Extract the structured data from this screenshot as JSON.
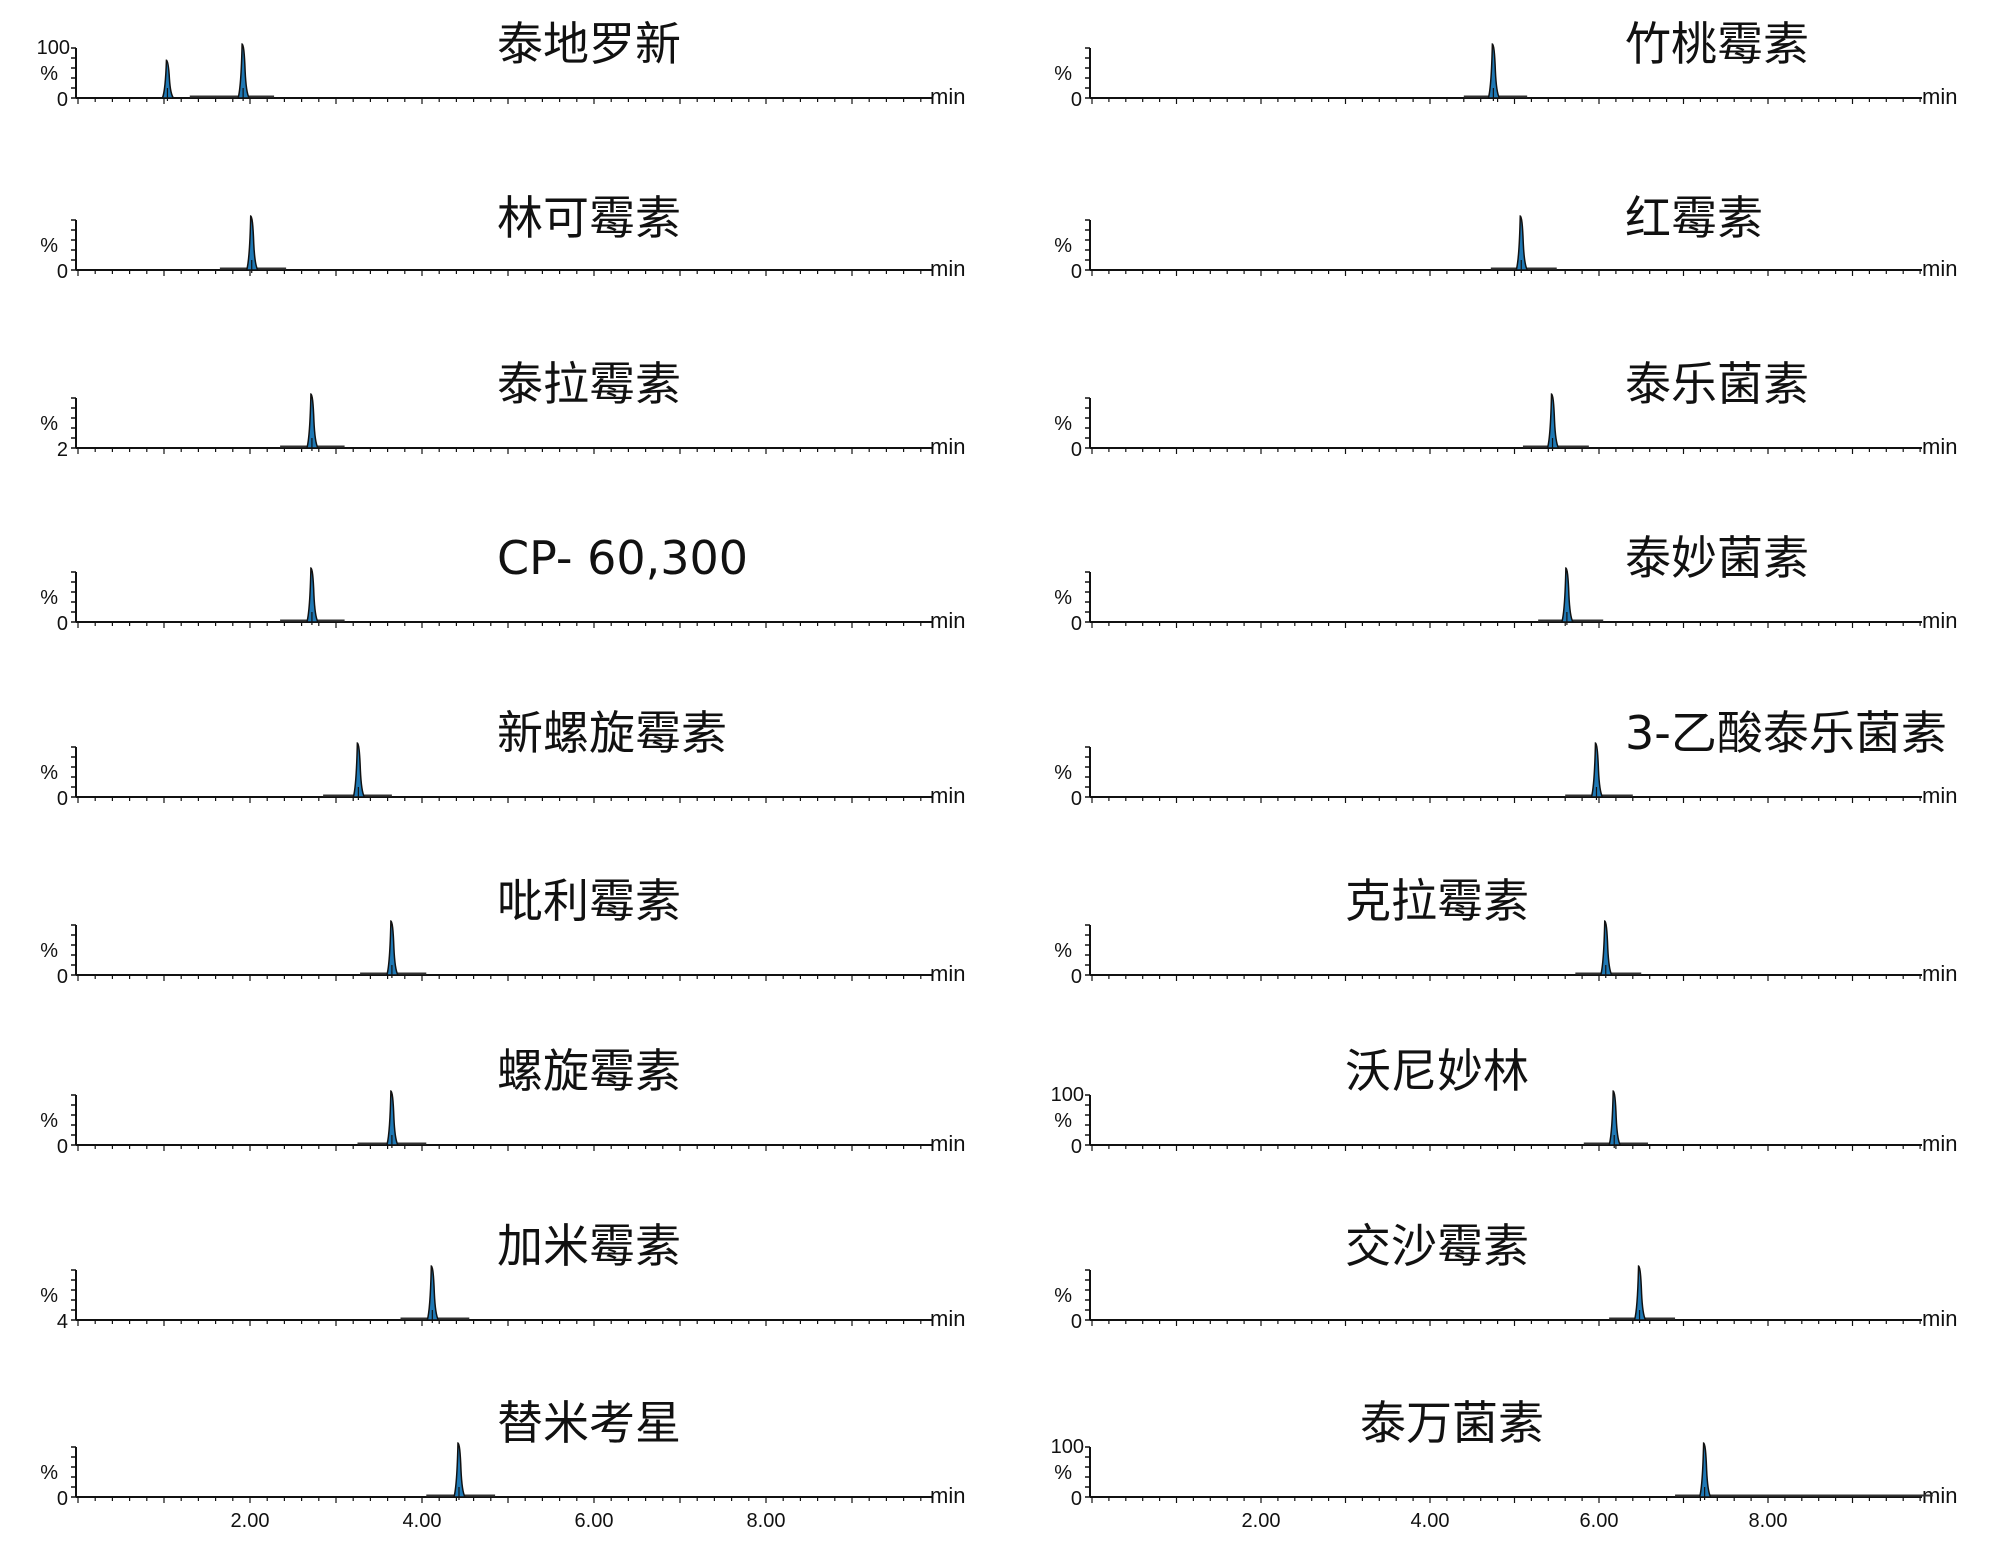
{
  "chart_data": [
    {
      "type": "line",
      "title": "泰地罗新",
      "y_top_label": "100",
      "y_unit": "%",
      "y_bottom_label": "0",
      "x_unit": "min",
      "xlim": [
        0,
        10
      ],
      "peaks": [
        {
          "rt": 1.04,
          "height": 0.7
        },
        {
          "rt": 1.92,
          "height": 1.0
        }
      ],
      "baseline_range": [
        1.3,
        2.28
      ]
    },
    {
      "type": "line",
      "title": "林可霉素",
      "y_top_label": "",
      "y_unit": "%",
      "y_bottom_label": "0",
      "x_unit": "min",
      "xlim": [
        0,
        10
      ],
      "peaks": [
        {
          "rt": 2.02,
          "height": 1.0
        }
      ],
      "baseline_range": [
        1.65,
        2.42
      ]
    },
    {
      "type": "line",
      "title": "泰拉霉素",
      "y_top_label": "",
      "y_unit": "%",
      "y_bottom_label": "2",
      "x_unit": "min",
      "xlim": [
        0,
        10
      ],
      "peaks": [
        {
          "rt": 2.72,
          "height": 1.0
        }
      ],
      "baseline_range": [
        2.35,
        3.1
      ]
    },
    {
      "type": "line",
      "title": "CP- 60,300",
      "y_top_label": "",
      "y_unit": "%",
      "y_bottom_label": "0",
      "x_unit": "min",
      "xlim": [
        0,
        10
      ],
      "peaks": [
        {
          "rt": 2.72,
          "height": 1.0
        }
      ],
      "baseline_range": [
        2.35,
        3.1
      ]
    },
    {
      "type": "line",
      "title": "新螺旋霉素",
      "y_top_label": "",
      "y_unit": "%",
      "y_bottom_label": "0",
      "x_unit": "min",
      "xlim": [
        0,
        10
      ],
      "peaks": [
        {
          "rt": 3.26,
          "height": 1.0
        }
      ],
      "baseline_range": [
        2.85,
        3.65
      ]
    },
    {
      "type": "line",
      "title": "吡利霉素",
      "y_top_label": "",
      "y_unit": "%",
      "y_bottom_label": "0",
      "x_unit": "min",
      "xlim": [
        0,
        10
      ],
      "peaks": [
        {
          "rt": 3.65,
          "height": 1.0
        }
      ],
      "baseline_range": [
        3.28,
        4.05
      ]
    },
    {
      "type": "line",
      "title": "螺旋霉素",
      "y_top_label": "",
      "y_unit": "%",
      "y_bottom_label": "0",
      "x_unit": "min",
      "xlim": [
        0,
        10
      ],
      "peaks": [
        {
          "rt": 3.65,
          "height": 1.0
        }
      ],
      "baseline_range": [
        3.25,
        4.05
      ]
    },
    {
      "type": "line",
      "title": "加米霉素",
      "y_top_label": "",
      "y_unit": "%",
      "y_bottom_label": "4",
      "x_unit": "min",
      "xlim": [
        0,
        10
      ],
      "peaks": [
        {
          "rt": 4.12,
          "height": 1.0
        }
      ],
      "baseline_range": [
        3.75,
        4.55
      ]
    },
    {
      "type": "line",
      "title": "替米考星",
      "y_top_label": "",
      "y_unit": "%",
      "y_bottom_label": "0",
      "x_unit": "min",
      "xlim": [
        0,
        10
      ],
      "peaks": [
        {
          "rt": 4.43,
          "height": 1.0
        }
      ],
      "baseline_range": [
        4.05,
        4.85
      ],
      "x_ticks": [
        "2.00",
        "4.00",
        "6.00",
        "8.00"
      ]
    },
    {
      "type": "line",
      "title": "竹桃霉素",
      "y_top_label": "",
      "y_unit": "%",
      "y_bottom_label": "0",
      "x_unit": "min",
      "xlim": [
        0,
        10
      ],
      "peaks": [
        {
          "rt": 4.75,
          "height": 1.0
        }
      ],
      "baseline_range": [
        4.4,
        5.15
      ]
    },
    {
      "type": "line",
      "title": "红霉素",
      "y_top_label": "",
      "y_unit": "%",
      "y_bottom_label": "0",
      "x_unit": "min",
      "xlim": [
        0,
        10
      ],
      "peaks": [
        {
          "rt": 5.08,
          "height": 1.0
        }
      ],
      "baseline_range": [
        4.72,
        5.5
      ]
    },
    {
      "type": "line",
      "title": "泰乐菌素",
      "y_top_label": "",
      "y_unit": "%",
      "y_bottom_label": "0",
      "x_unit": "min",
      "xlim": [
        0,
        10
      ],
      "peaks": [
        {
          "rt": 5.45,
          "height": 1.0
        }
      ],
      "baseline_range": [
        5.1,
        5.88
      ]
    },
    {
      "type": "line",
      "title": "泰妙菌素",
      "y_top_label": "",
      "y_unit": "%",
      "y_bottom_label": "0",
      "x_unit": "min",
      "xlim": [
        0,
        10
      ],
      "peaks": [
        {
          "rt": 5.62,
          "height": 1.0
        }
      ],
      "baseline_range": [
        5.28,
        6.05
      ]
    },
    {
      "type": "line",
      "title": "3-乙酸泰乐菌素",
      "y_top_label": "",
      "y_unit": "%",
      "y_bottom_label": "0",
      "x_unit": "min",
      "xlim": [
        0,
        10
      ],
      "peaks": [
        {
          "rt": 5.97,
          "height": 1.0
        }
      ],
      "baseline_range": [
        5.6,
        6.4
      ]
    },
    {
      "type": "line",
      "title": "克拉霉素",
      "y_top_label": "",
      "y_unit": "%",
      "y_bottom_label": "0",
      "x_unit": "min",
      "xlim": [
        0,
        10
      ],
      "peaks": [
        {
          "rt": 6.08,
          "height": 1.0
        }
      ],
      "baseline_range": [
        5.72,
        6.5
      ]
    },
    {
      "type": "line",
      "title": "沃尼妙林",
      "y_top_label": "100",
      "y_unit": "%",
      "y_bottom_label": "0",
      "x_unit": "min",
      "xlim": [
        0,
        10
      ],
      "peaks": [
        {
          "rt": 6.18,
          "height": 1.0
        }
      ],
      "baseline_range": [
        5.82,
        6.58
      ]
    },
    {
      "type": "line",
      "title": "交沙霉素",
      "y_top_label": "",
      "y_unit": "%",
      "y_bottom_label": "0",
      "x_unit": "min",
      "xlim": [
        0,
        10
      ],
      "peaks": [
        {
          "rt": 6.48,
          "height": 1.0
        }
      ],
      "baseline_range": [
        6.12,
        6.9
      ]
    },
    {
      "type": "line",
      "title": "泰万菌素",
      "y_top_label": "100",
      "y_unit": "%",
      "y_bottom_label": "0",
      "x_unit": "min",
      "xlim": [
        0,
        10
      ],
      "peaks": [
        {
          "rt": 7.25,
          "height": 1.0
        }
      ],
      "baseline_range": [
        6.9,
        9.95
      ],
      "x_ticks": [
        "2.00",
        "4.00",
        "6.00",
        "8.00"
      ]
    }
  ]
}
